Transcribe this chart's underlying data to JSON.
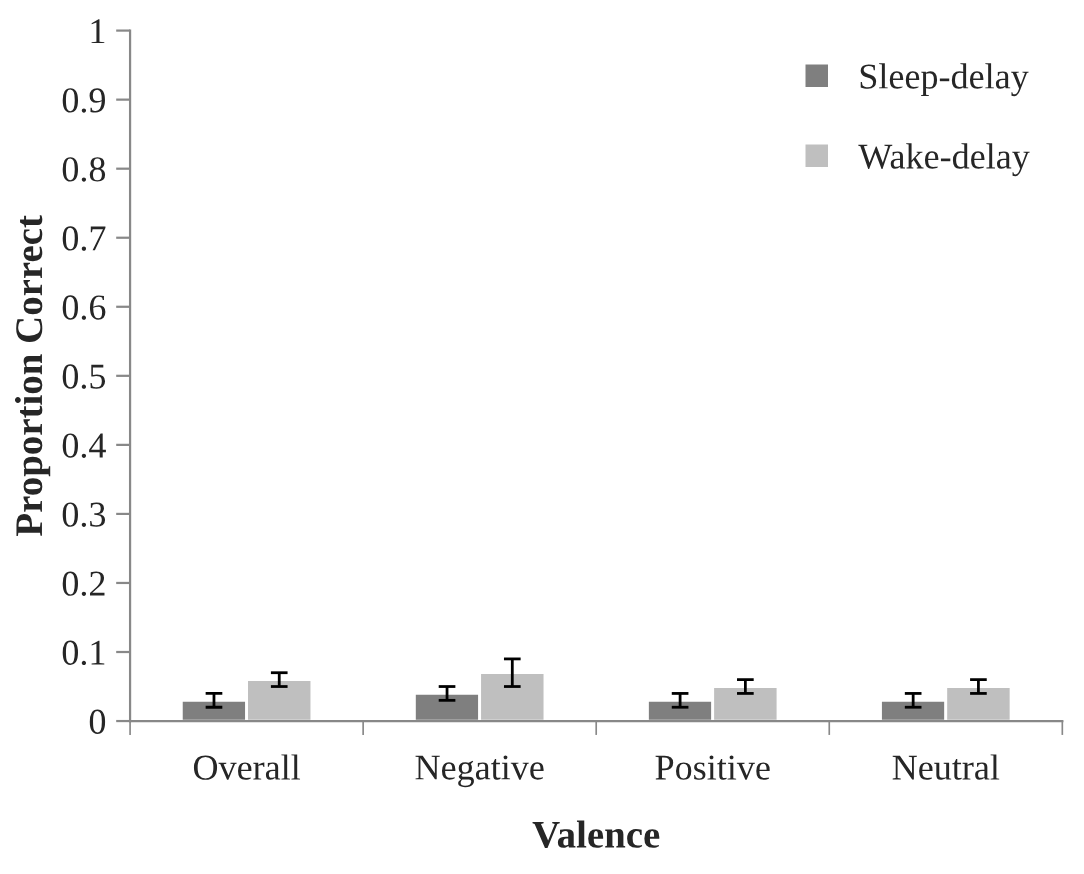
{
  "chart_data": {
    "type": "bar",
    "xlabel": "Valence",
    "ylabel": "Proportion Correct",
    "categories": [
      "Overall",
      "Negative",
      "Positive",
      "Neutral"
    ],
    "series": [
      {
        "name": "Sleep-delay",
        "color": "#7f7f7f",
        "values": [
          0.03,
          0.04,
          0.03,
          0.03
        ],
        "errors": [
          0.01,
          0.01,
          0.01,
          0.01
        ]
      },
      {
        "name": "Wake-delay",
        "color": "#bfbfbf",
        "values": [
          0.06,
          0.07,
          0.05,
          0.05
        ],
        "errors": [
          0.01,
          0.02,
          0.01,
          0.01
        ]
      }
    ],
    "ylim": [
      0,
      1
    ],
    "yticks": [
      0,
      0.1,
      0.2,
      0.3,
      0.4,
      0.5,
      0.6,
      0.7,
      0.8,
      0.9,
      1
    ],
    "grid": false,
    "legend": "top right"
  }
}
